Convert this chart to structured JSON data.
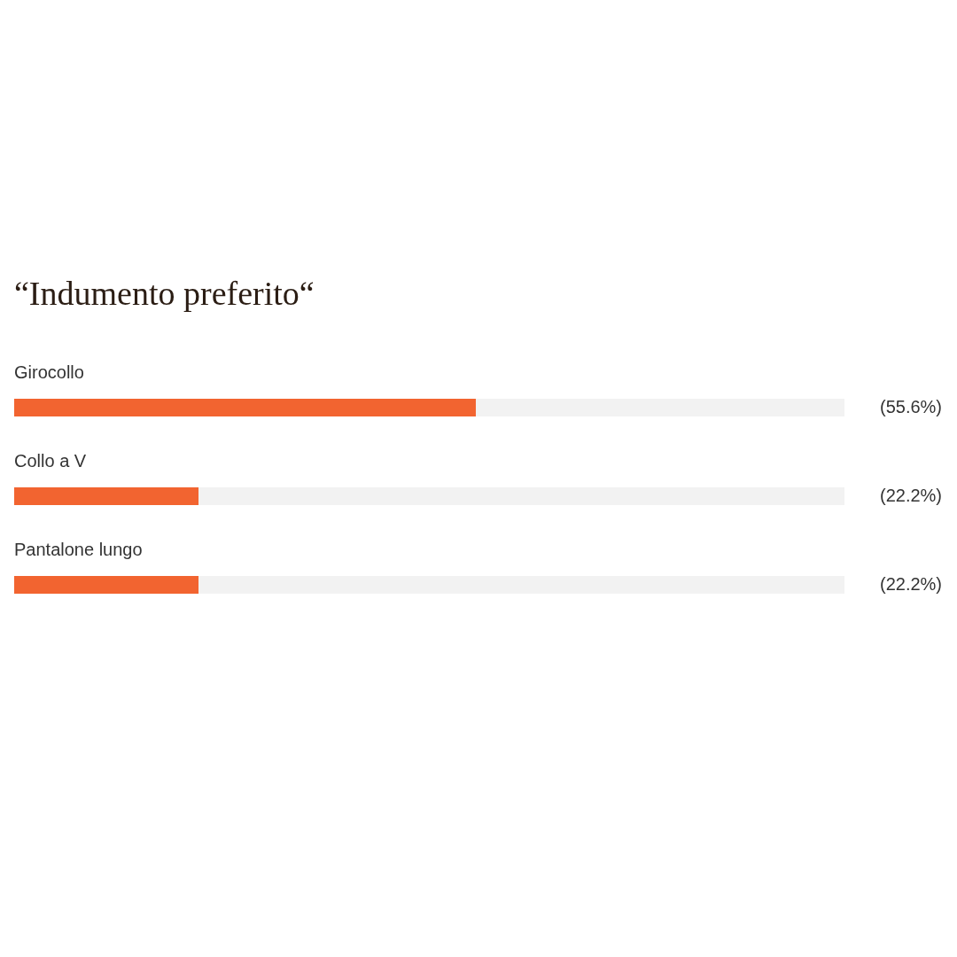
{
  "chart_data": {
    "type": "bar",
    "orientation": "horizontal",
    "title": "“Indumento preferito“",
    "categories": [
      "Girocollo",
      "Collo a V",
      "Pantalone lungo"
    ],
    "values": [
      55.6,
      22.2,
      22.2
    ],
    "value_labels": [
      "(55.6%)",
      "(22.2%)",
      "(22.2%)"
    ],
    "color": "#f26430",
    "xlim": [
      0,
      100
    ]
  }
}
